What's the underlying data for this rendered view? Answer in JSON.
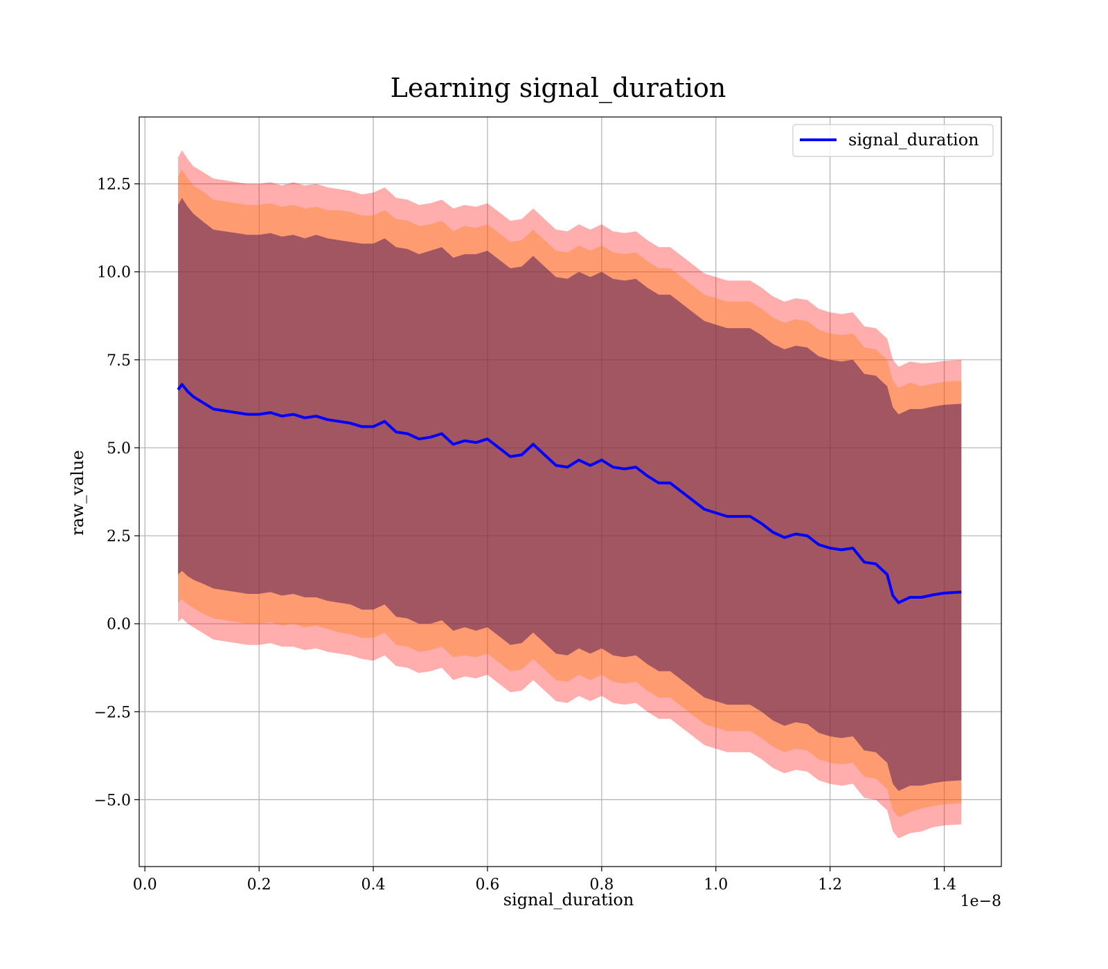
{
  "chart_data": {
    "type": "line",
    "title": "Learning signal_duration",
    "xlabel": "signal_duration",
    "ylabel": "raw_value",
    "x_offset_text": "1e−8",
    "xlim": [
      -0.01,
      1.5
    ],
    "ylim": [
      -6.9,
      14.4
    ],
    "grid": true,
    "legend_position": "upper right",
    "x_ticks": [
      0.0,
      0.2,
      0.4,
      0.6,
      0.8,
      1.0,
      1.2,
      1.4
    ],
    "x_tick_labels": [
      "0.0",
      "0.2",
      "0.4",
      "0.6",
      "0.8",
      "1.0",
      "1.2",
      "1.4"
    ],
    "y_ticks": [
      -5.0,
      -2.5,
      0.0,
      2.5,
      5.0,
      7.5,
      10.0,
      12.5
    ],
    "y_tick_labels": [
      "−5.0",
      "−2.5",
      "0.0",
      "2.5",
      "5.0",
      "7.5",
      "10.0",
      "12.5"
    ],
    "colors": {
      "line": "#0000ff",
      "band_outer": "#ff0000",
      "band_middle": "#ff7f0e",
      "band_inner": "#541e57"
    },
    "series": [
      {
        "name": "signal_duration",
        "x": [
          0.058,
          0.065,
          0.075,
          0.085,
          0.1,
          0.12,
          0.14,
          0.16,
          0.18,
          0.2,
          0.22,
          0.24,
          0.26,
          0.28,
          0.3,
          0.32,
          0.34,
          0.36,
          0.38,
          0.4,
          0.42,
          0.44,
          0.46,
          0.48,
          0.5,
          0.52,
          0.54,
          0.56,
          0.58,
          0.6,
          0.62,
          0.64,
          0.66,
          0.68,
          0.7,
          0.72,
          0.74,
          0.76,
          0.78,
          0.8,
          0.82,
          0.84,
          0.86,
          0.88,
          0.9,
          0.92,
          0.94,
          0.96,
          0.98,
          1.0,
          1.02,
          1.04,
          1.06,
          1.08,
          1.1,
          1.12,
          1.14,
          1.16,
          1.18,
          1.2,
          1.22,
          1.24,
          1.26,
          1.28,
          1.3,
          1.31,
          1.32,
          1.34,
          1.36,
          1.38,
          1.4,
          1.43
        ],
        "y": [
          6.65,
          6.8,
          6.6,
          6.45,
          6.3,
          6.1,
          6.05,
          6.0,
          5.95,
          5.95,
          6.0,
          5.9,
          5.95,
          5.85,
          5.9,
          5.8,
          5.75,
          5.7,
          5.6,
          5.6,
          5.75,
          5.45,
          5.4,
          5.25,
          5.3,
          5.4,
          5.1,
          5.2,
          5.15,
          5.25,
          5.0,
          4.75,
          4.8,
          5.1,
          4.8,
          4.5,
          4.45,
          4.65,
          4.5,
          4.65,
          4.45,
          4.4,
          4.45,
          4.2,
          4.0,
          4.0,
          3.75,
          3.5,
          3.25,
          3.15,
          3.05,
          3.05,
          3.05,
          2.85,
          2.6,
          2.45,
          2.55,
          2.5,
          2.25,
          2.15,
          2.1,
          2.15,
          1.75,
          1.7,
          1.4,
          0.8,
          0.6,
          0.75,
          0.75,
          0.82,
          0.87,
          0.9
        ],
        "band_inner": [
          5.25,
          5.3,
          5.25,
          5.2,
          5.15,
          5.1,
          5.1,
          5.1,
          5.1,
          5.1,
          5.1,
          5.1,
          5.1,
          5.1,
          5.15,
          5.15,
          5.15,
          5.15,
          5.2,
          5.2,
          5.2,
          5.25,
          5.25,
          5.25,
          5.3,
          5.3,
          5.3,
          5.3,
          5.35,
          5.35,
          5.35,
          5.35,
          5.35,
          5.35,
          5.35,
          5.35,
          5.35,
          5.35,
          5.35,
          5.35,
          5.35,
          5.35,
          5.35,
          5.35,
          5.35,
          5.35,
          5.35,
          5.35,
          5.35,
          5.35,
          5.35,
          5.35,
          5.35,
          5.35,
          5.35,
          5.35,
          5.35,
          5.35,
          5.35,
          5.35,
          5.35,
          5.35,
          5.35,
          5.35,
          5.35,
          5.35,
          5.35,
          5.35,
          5.35,
          5.35,
          5.35,
          5.35
        ],
        "band_middle": [
          6.05,
          6.1,
          6.05,
          6.0,
          6.0,
          5.95,
          5.95,
          5.95,
          5.95,
          5.95,
          5.95,
          5.95,
          5.95,
          5.95,
          5.95,
          5.95,
          6.0,
          6.0,
          6.0,
          6.0,
          6.0,
          6.05,
          6.05,
          6.05,
          6.05,
          6.05,
          6.05,
          6.1,
          6.1,
          6.1,
          6.1,
          6.1,
          6.1,
          6.1,
          6.1,
          6.1,
          6.1,
          6.1,
          6.1,
          6.1,
          6.1,
          6.1,
          6.1,
          6.1,
          6.1,
          6.1,
          6.1,
          6.1,
          6.1,
          6.1,
          6.1,
          6.1,
          6.1,
          6.1,
          6.1,
          6.1,
          6.1,
          6.1,
          6.1,
          6.1,
          6.1,
          6.1,
          6.1,
          6.1,
          6.1,
          6.1,
          6.1,
          6.1,
          6.0,
          6.0,
          6.0,
          6.0
        ],
        "band_outer": [
          6.6,
          6.65,
          6.6,
          6.55,
          6.55,
          6.55,
          6.55,
          6.55,
          6.55,
          6.55,
          6.55,
          6.55,
          6.6,
          6.6,
          6.6,
          6.6,
          6.6,
          6.6,
          6.6,
          6.65,
          6.65,
          6.65,
          6.65,
          6.65,
          6.65,
          6.65,
          6.7,
          6.7,
          6.7,
          6.7,
          6.7,
          6.7,
          6.7,
          6.7,
          6.7,
          6.7,
          6.7,
          6.7,
          6.7,
          6.7,
          6.7,
          6.7,
          6.7,
          6.7,
          6.7,
          6.7,
          6.7,
          6.7,
          6.7,
          6.7,
          6.7,
          6.7,
          6.7,
          6.7,
          6.7,
          6.7,
          6.7,
          6.7,
          6.7,
          6.7,
          6.7,
          6.7,
          6.7,
          6.7,
          6.7,
          6.7,
          6.7,
          6.7,
          6.65,
          6.6,
          6.6,
          6.6
        ]
      }
    ]
  }
}
